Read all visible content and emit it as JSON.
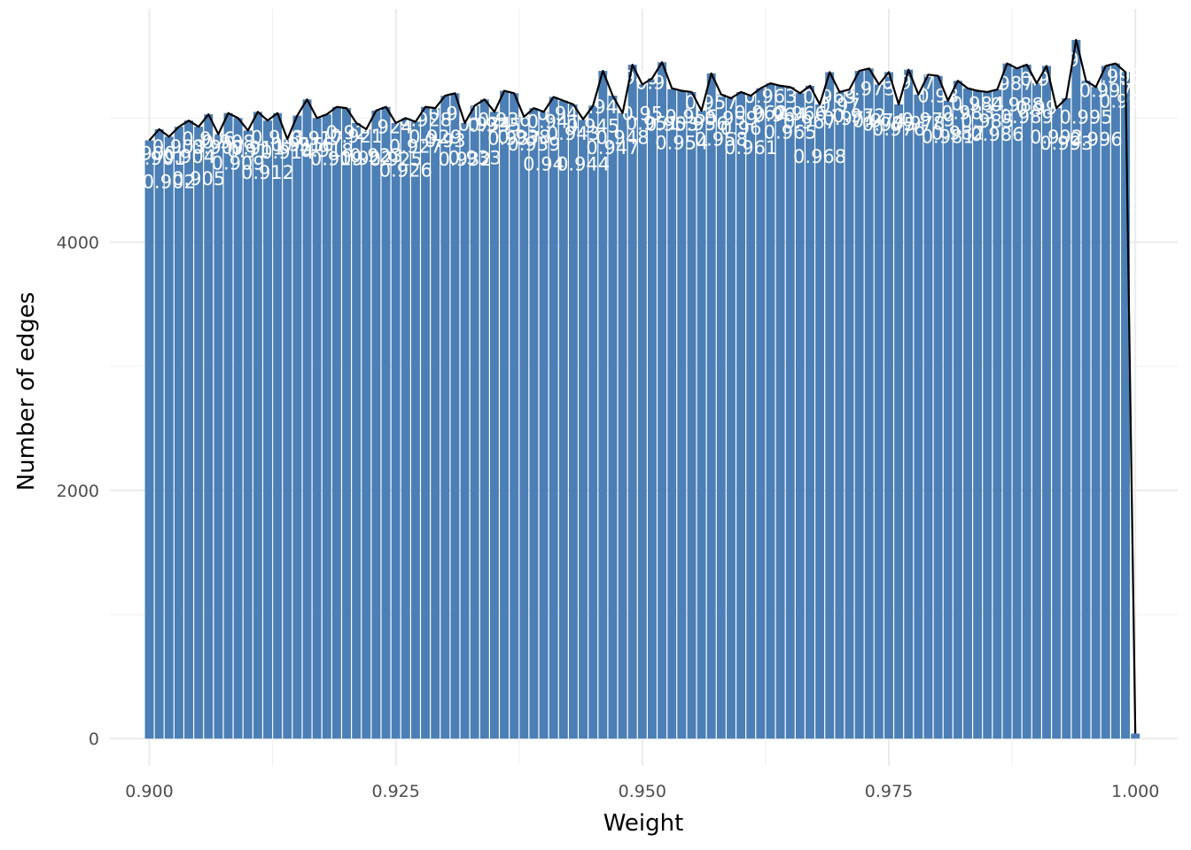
{
  "chart_data": {
    "type": "bar",
    "xlabel": "Weight",
    "ylabel": "Number of edges",
    "xlim": [
      0.896,
      1.0043
    ],
    "ylim": [
      -220,
      5880
    ],
    "x_ticks": [
      0.9,
      0.925,
      0.95,
      0.975,
      1.0
    ],
    "x_tick_labels": [
      "0.900",
      "0.925",
      "0.950",
      "0.975",
      "1.000"
    ],
    "y_ticks": [
      0,
      2000,
      4000
    ],
    "y_tick_labels": [
      "0",
      "2000",
      "4000"
    ],
    "grid": true,
    "bar_color": "#4b7fb5",
    "line_color": "#000000",
    "bin_width": 0.001,
    "x": [
      0.9,
      0.901,
      0.902,
      0.903,
      0.904,
      0.905,
      0.906,
      0.907,
      0.908,
      0.909,
      0.91,
      0.911,
      0.912,
      0.913,
      0.914,
      0.915,
      0.916,
      0.917,
      0.918,
      0.919,
      0.92,
      0.921,
      0.922,
      0.923,
      0.924,
      0.925,
      0.926,
      0.927,
      0.928,
      0.929,
      0.93,
      0.931,
      0.932,
      0.933,
      0.934,
      0.935,
      0.936,
      0.937,
      0.938,
      0.939,
      0.94,
      0.941,
      0.942,
      0.943,
      0.944,
      0.945,
      0.946,
      0.947,
      0.948,
      0.949,
      0.95,
      0.951,
      0.952,
      0.953,
      0.954,
      0.955,
      0.956,
      0.957,
      0.958,
      0.959,
      0.96,
      0.961,
      0.962,
      0.963,
      0.964,
      0.965,
      0.966,
      0.967,
      0.968,
      0.969,
      0.97,
      0.971,
      0.972,
      0.973,
      0.974,
      0.975,
      0.976,
      0.977,
      0.978,
      0.979,
      0.98,
      0.981,
      0.982,
      0.983,
      0.984,
      0.985,
      0.986,
      0.987,
      0.988,
      0.989,
      0.99,
      0.991,
      0.992,
      0.993,
      0.994,
      0.995,
      0.996,
      0.997,
      0.998,
      0.999,
      1.0
    ],
    "values": [
      4820,
      4910,
      4850,
      4930,
      4980,
      4930,
      5030,
      4870,
      5040,
      5000,
      4900,
      5050,
      4980,
      5040,
      4830,
      5020,
      5150,
      5000,
      5030,
      5090,
      5080,
      4960,
      4910,
      5060,
      5090,
      4960,
      5000,
      4970,
      5090,
      5080,
      5180,
      5200,
      4960,
      5100,
      5150,
      5050,
      5220,
      5200,
      5010,
      5080,
      5050,
      5170,
      5140,
      5110,
      4990,
      5100,
      5380,
      5180,
      5040,
      5430,
      5270,
      5320,
      5450,
      5240,
      5220,
      5210,
      5060,
      5360,
      5190,
      5160,
      5210,
      5180,
      5240,
      5280,
      5260,
      5250,
      5200,
      5260,
      5110,
      5370,
      5210,
      5230,
      5380,
      5400,
      5270,
      5370,
      5110,
      5390,
      5190,
      5350,
      5340,
      5140,
      5300,
      5240,
      5220,
      5210,
      5230,
      5440,
      5400,
      5430,
      5280,
      5420,
      5080,
      5160,
      5630,
      5300,
      5250,
      5420,
      5440,
      5370,
      40
    ],
    "data_labels": [
      {
        "x": 0.9,
        "text": "0.900"
      },
      {
        "x": 0.901,
        "text": "0.901"
      },
      {
        "x": 0.902,
        "text": "0.902"
      },
      {
        "x": 0.903,
        "text": "0.903"
      },
      {
        "x": 0.904,
        "text": "0.904"
      },
      {
        "x": 0.905,
        "text": "0.905"
      },
      {
        "x": 0.906,
        "text": "0.906"
      },
      {
        "x": 0.907,
        "text": "0.907"
      },
      {
        "x": 0.908,
        "text": "0.908"
      },
      {
        "x": 0.909,
        "text": "0.909"
      },
      {
        "x": 0.91,
        "text": "0.91"
      },
      {
        "x": 0.911,
        "text": "0.911"
      },
      {
        "x": 0.912,
        "text": "0.912"
      },
      {
        "x": 0.913,
        "text": "0.913"
      },
      {
        "x": 0.914,
        "text": "0.914"
      },
      {
        "x": 0.915,
        "text": "0.915"
      },
      {
        "x": 0.916,
        "text": "0.916"
      },
      {
        "x": 0.917,
        "text": "0.917"
      },
      {
        "x": 0.918,
        "text": "0.918"
      },
      {
        "x": 0.919,
        "text": "0.919"
      },
      {
        "x": 0.92,
        "text": "0.92"
      },
      {
        "x": 0.921,
        "text": "0.921"
      },
      {
        "x": 0.922,
        "text": "0.922"
      },
      {
        "x": 0.923,
        "text": "0.923"
      },
      {
        "x": 0.924,
        "text": "0.924"
      },
      {
        "x": 0.925,
        "text": "0.925"
      },
      {
        "x": 0.926,
        "text": "0.926"
      },
      {
        "x": 0.927,
        "text": "0.927"
      },
      {
        "x": 0.928,
        "text": "0.928"
      },
      {
        "x": 0.929,
        "text": "0.929"
      },
      {
        "x": 0.93,
        "text": "0.93"
      },
      {
        "x": 0.931,
        "text": "0.931"
      },
      {
        "x": 0.932,
        "text": "0.932"
      },
      {
        "x": 0.933,
        "text": "0.933"
      },
      {
        "x": 0.934,
        "text": "0.934"
      },
      {
        "x": 0.935,
        "text": "0.935"
      },
      {
        "x": 0.936,
        "text": "0.936"
      },
      {
        "x": 0.937,
        "text": "0.937"
      },
      {
        "x": 0.938,
        "text": "0.938"
      },
      {
        "x": 0.939,
        "text": "0.939"
      },
      {
        "x": 0.94,
        "text": "0.94"
      },
      {
        "x": 0.941,
        "text": "0.941"
      },
      {
        "x": 0.942,
        "text": "0.942"
      },
      {
        "x": 0.943,
        "text": "0.943"
      },
      {
        "x": 0.944,
        "text": "0.944"
      },
      {
        "x": 0.945,
        "text": "0.945"
      },
      {
        "x": 0.946,
        "text": "0.946"
      },
      {
        "x": 0.947,
        "text": "0.947"
      },
      {
        "x": 0.948,
        "text": "0.948"
      },
      {
        "x": 0.949,
        "text": "0.949"
      },
      {
        "x": 0.95,
        "text": "0.95"
      },
      {
        "x": 0.951,
        "text": "0.951"
      },
      {
        "x": 0.952,
        "text": "0.952"
      },
      {
        "x": 0.953,
        "text": "0.953"
      },
      {
        "x": 0.954,
        "text": "0.954"
      },
      {
        "x": 0.955,
        "text": "0.955"
      },
      {
        "x": 0.956,
        "text": "0.956"
      },
      {
        "x": 0.957,
        "text": "0.957"
      },
      {
        "x": 0.958,
        "text": "0.958"
      },
      {
        "x": 0.959,
        "text": "0.959"
      },
      {
        "x": 0.96,
        "text": "0.96"
      },
      {
        "x": 0.961,
        "text": "0.961"
      },
      {
        "x": 0.962,
        "text": "0.962"
      },
      {
        "x": 0.963,
        "text": "0.963"
      },
      {
        "x": 0.964,
        "text": "0.964"
      },
      {
        "x": 0.965,
        "text": "0.965"
      },
      {
        "x": 0.966,
        "text": "0.966"
      },
      {
        "x": 0.967,
        "text": "0.967"
      },
      {
        "x": 0.968,
        "text": "0.968"
      },
      {
        "x": 0.969,
        "text": "0.969"
      },
      {
        "x": 0.97,
        "text": "0.97"
      },
      {
        "x": 0.971,
        "text": "0.971"
      },
      {
        "x": 0.972,
        "text": "0.972"
      },
      {
        "x": 0.973,
        "text": "0.973"
      },
      {
        "x": 0.974,
        "text": "0.974"
      },
      {
        "x": 0.975,
        "text": "0.975"
      },
      {
        "x": 0.976,
        "text": "0.976"
      },
      {
        "x": 0.977,
        "text": "0.977"
      },
      {
        "x": 0.978,
        "text": "0.978"
      },
      {
        "x": 0.979,
        "text": "0.979"
      },
      {
        "x": 0.98,
        "text": "0.98"
      },
      {
        "x": 0.981,
        "text": "0.981"
      },
      {
        "x": 0.982,
        "text": "0.982"
      },
      {
        "x": 0.983,
        "text": "0.983"
      },
      {
        "x": 0.984,
        "text": "0.984"
      },
      {
        "x": 0.985,
        "text": "0.985"
      },
      {
        "x": 0.986,
        "text": "0.986"
      },
      {
        "x": 0.987,
        "text": "0.987"
      },
      {
        "x": 0.988,
        "text": "0.988"
      },
      {
        "x": 0.989,
        "text": "0.989"
      },
      {
        "x": 0.99,
        "text": "0.99"
      },
      {
        "x": 0.991,
        "text": "0.991"
      },
      {
        "x": 0.992,
        "text": "0.992"
      },
      {
        "x": 0.993,
        "text": "0.993"
      },
      {
        "x": 0.994,
        "text": "0.994"
      },
      {
        "x": 0.995,
        "text": "0.995"
      },
      {
        "x": 0.996,
        "text": "0.996"
      },
      {
        "x": 0.997,
        "text": "0.997"
      },
      {
        "x": 0.998,
        "text": "0.998"
      },
      {
        "x": 0.999,
        "text": "0.999"
      }
    ]
  }
}
